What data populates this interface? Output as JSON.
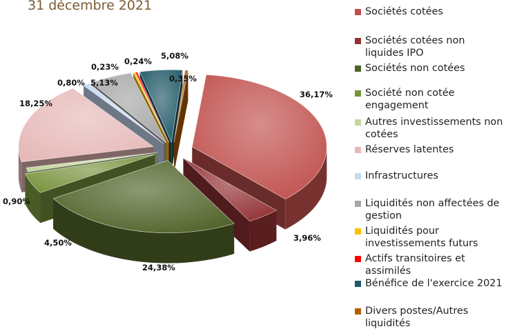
{
  "title": "31 décembre 2021",
  "chart_data": {
    "type": "pie",
    "categories": [
      "Sociétés cotées",
      "Sociétés cotées non liquides IPO",
      "Sociétés non cotées",
      "Société non cotée engagement",
      "Autres investissements non cotées",
      "Réserves latentes",
      "Infrastructures",
      "Liquidités non affectées de gestion",
      "Liquidités pour investissements futurs",
      "Actifs transitoires et assimilés",
      "Bénéfice de l'exercice 2021",
      "Divers postes/Autres liquidités"
    ],
    "values": [
      36.17,
      3.96,
      24.38,
      4.5,
      0.9,
      18.25,
      0.8,
      5.13,
      0.23,
      0.24,
      5.08,
      0.35
    ],
    "labels": [
      "36,17%",
      "3,96%",
      "24,38%",
      "4,50%",
      "0,90%",
      "18,25%",
      "0,80%",
      "5,13%",
      "0,23%",
      "0,24%",
      "5,08%",
      "0,35%"
    ],
    "colors": [
      "#c0504d",
      "#923134",
      "#4f6228",
      "#77933c",
      "#c3d69b",
      "#e6b9b8",
      "#c6d9f1",
      "#a6a6a6",
      "#ffc000",
      "#ff0000",
      "#215968",
      "#b45f06"
    ],
    "legend_position": "right"
  }
}
